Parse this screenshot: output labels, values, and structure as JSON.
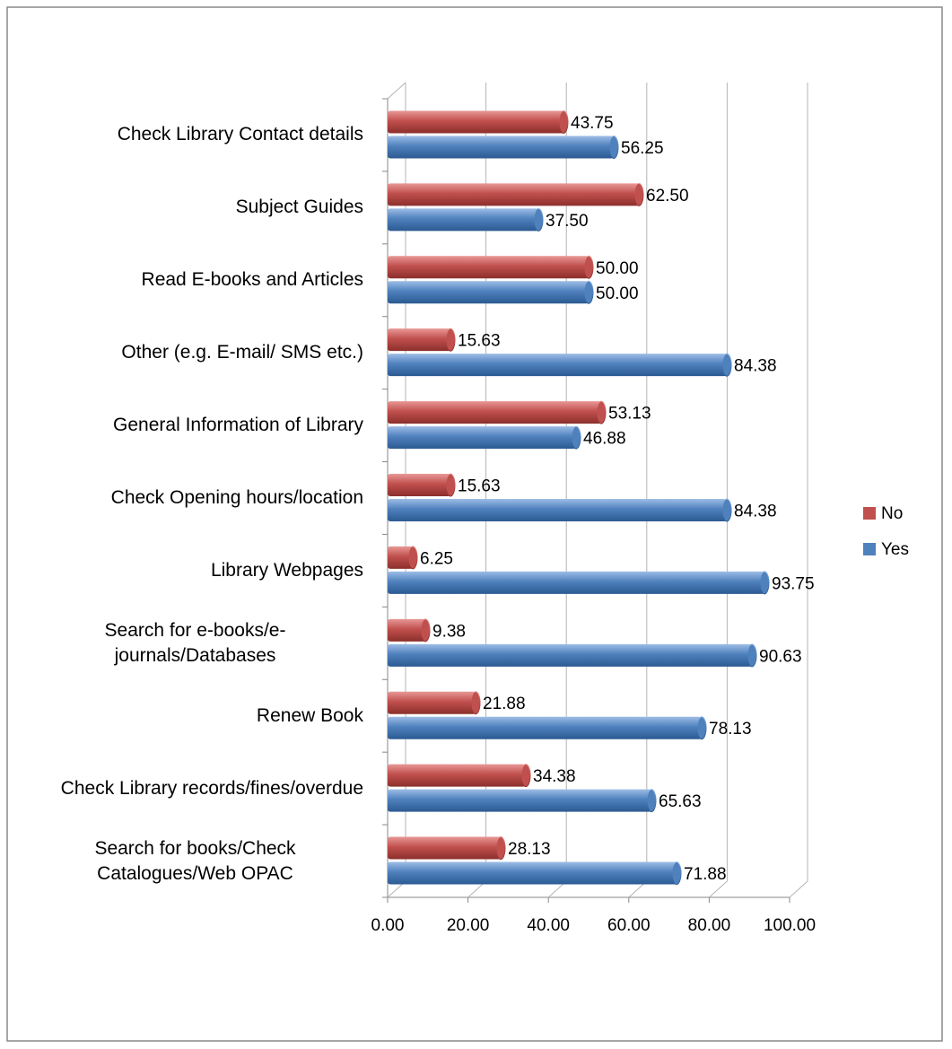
{
  "chart_data": {
    "type": "bar",
    "orientation": "horizontal",
    "categories": [
      "Search for books/Check Catalogues/Web OPAC",
      "Check Library records/fines/overdue",
      "Renew Book",
      "Search for e-books/e-journals/Databases",
      "Library Webpages",
      "Check Opening hours/location",
      "General Information of Library",
      "Other (e.g. E-mail/ SMS etc.)",
      "Read E-books and Articles",
      "Subject Guides",
      "Check Library Contact details"
    ],
    "series": [
      {
        "name": "No",
        "color": "#c0504d",
        "values": [
          28.13,
          34.38,
          21.88,
          9.38,
          6.25,
          15.63,
          53.13,
          15.63,
          50.0,
          62.5,
          43.75
        ],
        "value_labels": [
          "28.13",
          "34.38",
          "21.88",
          "9.38",
          "6.25",
          "15.63",
          "53.13",
          "15.63",
          "50.00",
          "62.50",
          "43.75"
        ]
      },
      {
        "name": "Yes",
        "color": "#4f81bd",
        "values": [
          71.88,
          65.63,
          78.13,
          90.63,
          93.75,
          84.38,
          46.88,
          84.38,
          50.0,
          37.5,
          56.25
        ],
        "value_labels": [
          "71.88",
          "65.63",
          "78.13",
          "90.63",
          "93.75",
          "84.38",
          "46.88",
          "84.38",
          "50.00",
          "37.50",
          "56.25"
        ]
      }
    ],
    "xlim": [
      0,
      100
    ],
    "xticks": [
      {
        "value": 0,
        "label": "0.00"
      },
      {
        "value": 20,
        "label": "20.00"
      },
      {
        "value": 40,
        "label": "40.00"
      },
      {
        "value": 60,
        "label": "60.00"
      },
      {
        "value": 80,
        "label": "80.00"
      },
      {
        "value": 100,
        "label": "100.00"
      }
    ],
    "grid": true,
    "legend": "right"
  }
}
